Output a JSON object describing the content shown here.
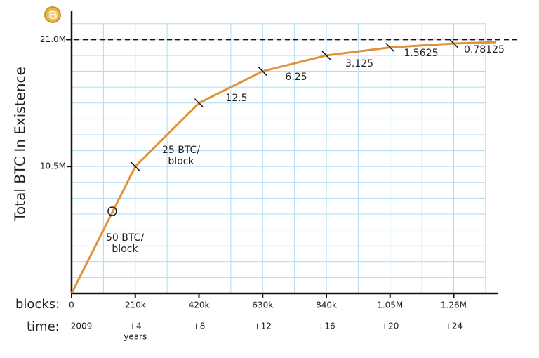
{
  "chart_data": {
    "type": "line",
    "ylabel": "Total BTC In Existence",
    "x_label": "blocks:",
    "time_label": "time:",
    "x": [
      0,
      210000,
      420000,
      630000,
      840000,
      1050000,
      1260000,
      1400000
    ],
    "values": [
      0,
      10500000,
      15750000,
      18375000,
      19687500,
      20343750,
      20671875,
      20781250
    ],
    "color": "#e0913a",
    "xlim": [
      0,
      1400000
    ],
    "ylim": [
      0,
      23400000
    ],
    "xticks": [
      0,
      {
        "value": 210000,
        "label": "210k"
      },
      {
        "value": 420000,
        "label": "420k"
      },
      {
        "value": 630000,
        "label": "630k"
      },
      {
        "value": 840000,
        "label": "840k"
      },
      {
        "value": 1050000,
        "label": "1.05M"
      },
      {
        "value": 1260000,
        "label": "1.26M"
      }
    ],
    "yticks": [
      {
        "value": 10500000,
        "label": "10.5M"
      },
      {
        "value": 21000000,
        "label": "21.0M"
      }
    ],
    "x_minor_ticks": [
      0,
      105000,
      210000,
      315000,
      420000,
      525000,
      630000,
      735000,
      840000,
      945000,
      1050000,
      1155000,
      1260000,
      1365000
    ],
    "y_minor_ticks": [
      0,
      1312500,
      2625000,
      3937500,
      5250000,
      6562500,
      7875000,
      9187500,
      10500000,
      11812500,
      13125000,
      14437500,
      15750000,
      17062500,
      18375000,
      19687500,
      21000000,
      22312500
    ],
    "cap_line": 21000000,
    "time_labels": [
      "2009",
      "+4",
      "+8",
      "+12",
      "+16",
      "+20",
      "+24"
    ],
    "time_unit": "years",
    "segment_labels": [
      [
        "50 BTC/",
        "block"
      ],
      [
        "25 BTC/",
        "block"
      ],
      [
        "12.5"
      ],
      [
        "6.25"
      ],
      [
        "3.125"
      ],
      [
        "1.5625"
      ],
      [
        "0.78125"
      ]
    ],
    "marker": {
      "x": 134000,
      "y": 6790000
    },
    "grid": true
  }
}
